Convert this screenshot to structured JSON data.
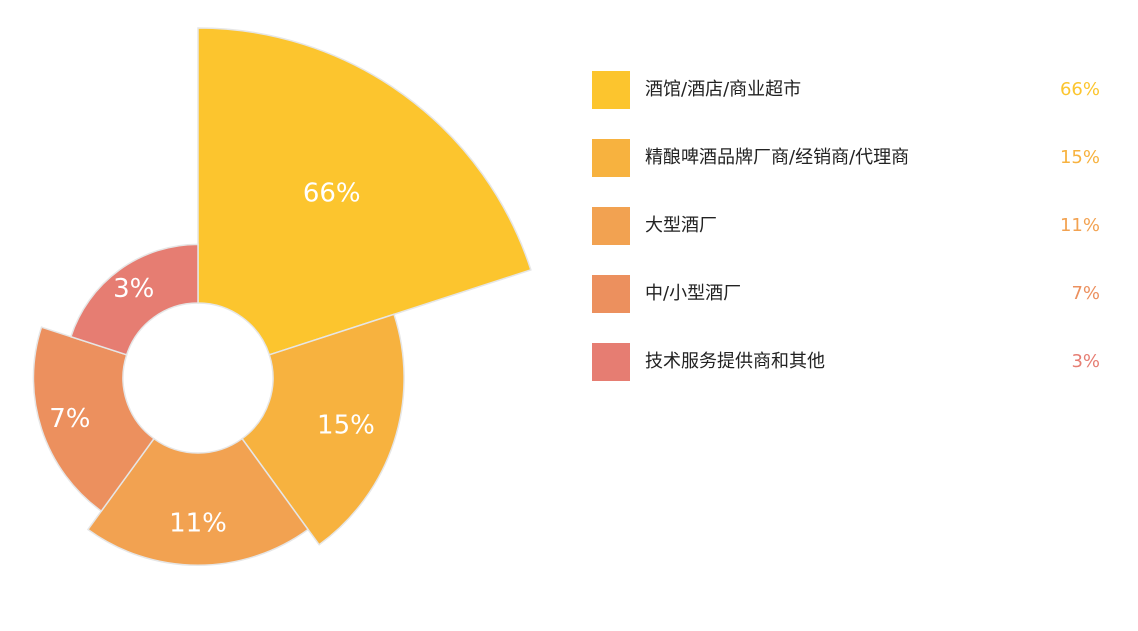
{
  "chart_data": {
    "type": "rose",
    "categories": [
      "酒馆/酒店/商业超市",
      "精酿啤酒品牌厂商/经销商/代理商",
      "大型酒厂",
      "中/小型酒厂",
      "技术服务提供商和其他"
    ],
    "values": [
      66,
      15,
      11,
      7,
      3
    ],
    "value_labels": [
      "66%",
      "15%",
      "11%",
      "7%",
      "3%"
    ],
    "colors": [
      "#fcc52e",
      "#f7b23f",
      "#f2a251",
      "#ec905e",
      "#e67d72"
    ]
  }
}
